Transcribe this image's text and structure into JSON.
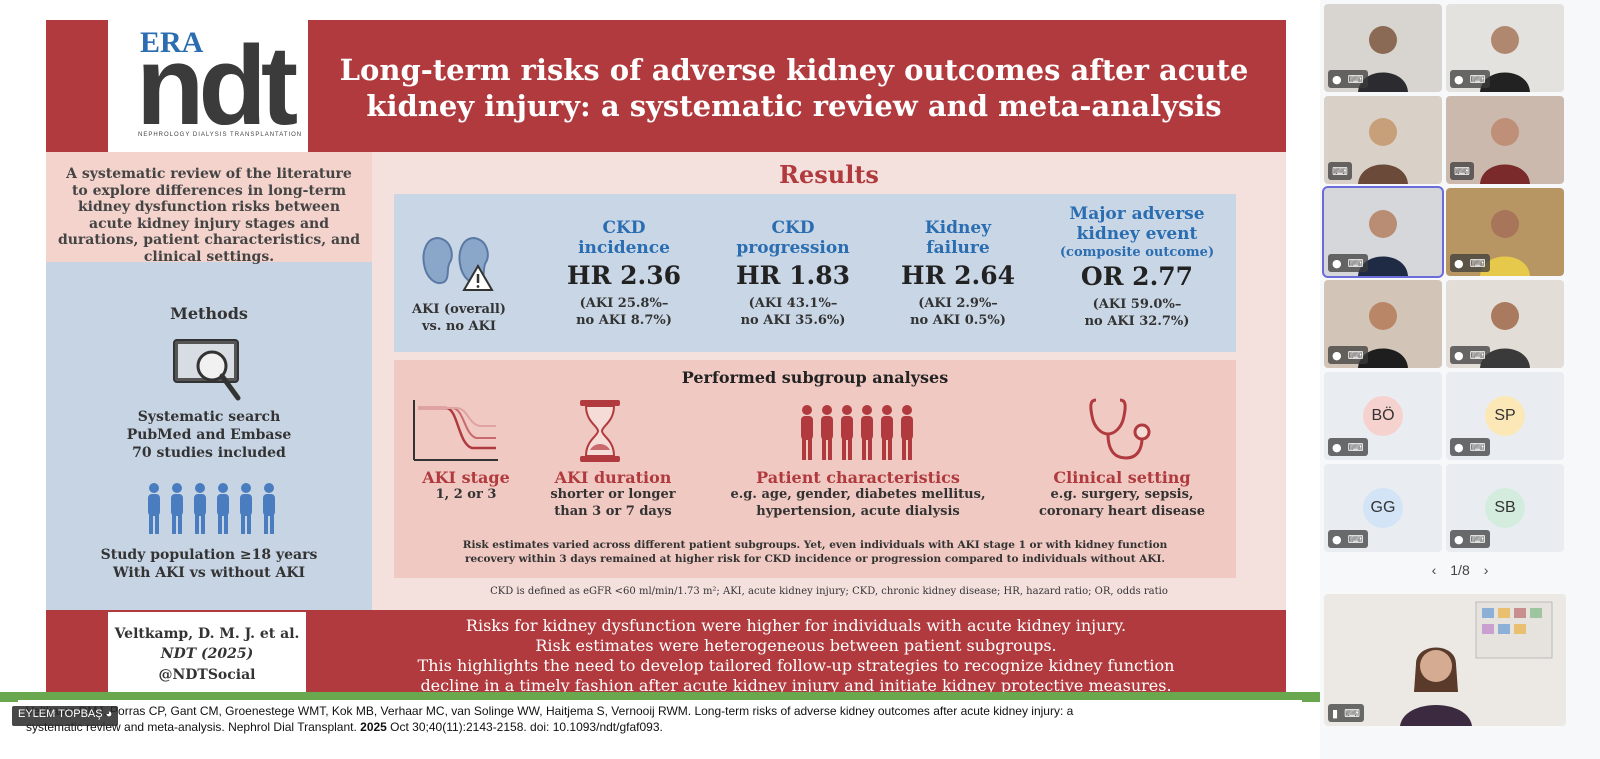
{
  "slide": {
    "logo": {
      "era": "ERA",
      "ndt": "ndt",
      "sub": "NEPHROLOGY DIALYSIS TRANSPLANTATION"
    },
    "title": "Long-term risks of adverse kidney outcomes after acute kidney injury: a systematic review and meta-analysis",
    "aim": "A systematic review of the literature to explore differences in long-term kidney dysfunction risks between acute kidney injury stages and durations, patient characteristics, and clinical settings.",
    "methods": {
      "heading": "Methods",
      "search": [
        "Systematic search",
        "PubMed and Embase",
        "70 studies included"
      ],
      "population": [
        "Study population ≥18 years",
        "With AKI vs without AKI"
      ]
    },
    "results": {
      "heading": "Results",
      "aki_label": [
        "AKI (overall)",
        "vs. no AKI"
      ],
      "stats": [
        {
          "name": [
            "CKD",
            "incidence"
          ],
          "value": "HR 2.36",
          "detail": [
            "(AKI 25.8%–",
            "no AKI 8.7%)"
          ]
        },
        {
          "name": [
            "CKD",
            "progression"
          ],
          "value": "HR 1.83",
          "detail": [
            "(AKI 43.1%–",
            "no AKI 35.6%)"
          ]
        },
        {
          "name": [
            "Kidney",
            "failure"
          ],
          "value": "HR 2.64",
          "detail": [
            "(AKI 2.9%–",
            "no AKI 0.5%)"
          ]
        },
        {
          "name": [
            "Major adverse",
            "kidney event"
          ],
          "note": "(composite outcome)",
          "value": "OR 2.77",
          "detail": [
            "(AKI 59.0%–",
            "no AKI 32.7%)"
          ]
        }
      ]
    },
    "subgroups": {
      "heading": "Performed subgroup analyses",
      "items": [
        {
          "name": "AKI stage",
          "desc": [
            "1, 2 or 3"
          ]
        },
        {
          "name": "AKI duration",
          "desc": [
            "shorter or longer",
            "than 3 or 7 days"
          ]
        },
        {
          "name": "Patient characteristics",
          "desc": [
            "e.g. age, gender, diabetes mellitus,",
            "hypertension, acute dialysis"
          ]
        },
        {
          "name": "Clinical setting",
          "desc": [
            "e.g. surgery, sepsis,",
            "coronary heart disease"
          ]
        }
      ],
      "risk_note": [
        "Risk estimates varied across different patient subgroups. Yet, even individuals with AKI stage 1 or with kidney function",
        "recovery within 3 days remained at higher risk for CKD incidence or progression compared to individuals without AKI."
      ]
    },
    "definitions": "CKD is defined as eGFR <60 ml/min/1.73 m²; AKI, acute kidney injury; CKD, chronic kidney disease; HR, hazard ratio; OR, odds ratio",
    "citation": {
      "author": "Veltkamp, D. M. J. et al.",
      "journal": "NDT (2025)",
      "handle": "@NDTSocial"
    },
    "conclusion": [
      "Risks for kidney dysfunction were higher for individuals with acute kidney injury.",
      "Risk estimates were heterogeneous between patient subgroups.",
      "This highlights the need to develop tailored follow-up strategies to recognize kidney function",
      "decline in a timely fashion after acute kidney injury and initiate kidney protective measures."
    ]
  },
  "caption": {
    "line1": "Veltkamp DMJ, Porras CP, Gant CM, Groenestege WMT, Kok MB, Verhaar MC, van Solinge WW, Haitjema S, Vernooij RWM. Long-term risks of adverse kidney outcomes after acute kidney injury: a",
    "line2a": "systematic review and meta-analysis. Nephrol Dial Transplant. ",
    "year": "2025",
    "line2b": " Oct 30;40(11):2143-2158. doi: 10.1093/ndt/gfaf093."
  },
  "presenter_tag": "EYLEM TOPBAŞ",
  "participants": {
    "avatars": [
      {
        "initials": "BÖ",
        "color": "#f6d2cf"
      },
      {
        "initials": "SP",
        "color": "#fbe8b6"
      },
      {
        "initials": "GG",
        "color": "#d3e4f7"
      },
      {
        "initials": "SB",
        "color": "#d4ecdd"
      }
    ],
    "pager": "1/8"
  },
  "colors": {
    "slide_red": "#b03a3e",
    "blue": "#2a6db0",
    "green_strip": "#6aa84f",
    "active_outline": "#6b6bdc"
  }
}
